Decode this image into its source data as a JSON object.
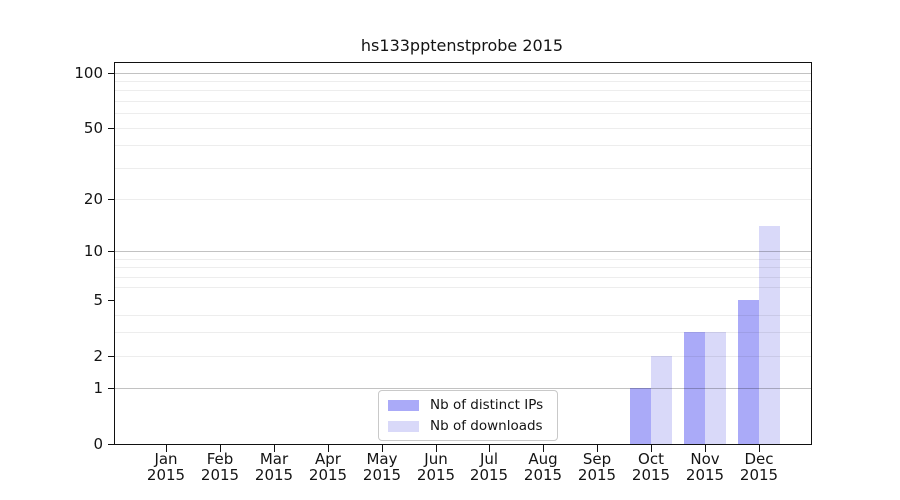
{
  "chart_data": {
    "type": "bar",
    "title": "hs133pptenstprobe 2015",
    "x_axis": {
      "categories": [
        "Jan",
        "Feb",
        "Mar",
        "Apr",
        "May",
        "Jun",
        "Jul",
        "Aug",
        "Sep",
        "Oct",
        "Nov",
        "Dec"
      ],
      "year": "2015"
    },
    "y_axis": {
      "scale": "log1p",
      "tick_values": [
        0,
        1,
        2,
        5,
        10,
        20,
        50,
        100
      ],
      "minor_gridlines": [
        2,
        3,
        4,
        6,
        7,
        8,
        9,
        20,
        30,
        40,
        50,
        60,
        70,
        80,
        90
      ],
      "major_gridlines": [
        1,
        10,
        100
      ],
      "ylim": [
        0,
        113
      ],
      "grid": true
    },
    "series": [
      {
        "name": "Nb of distinct IPs",
        "color": "#aaaaf8",
        "values": [
          0,
          0,
          0,
          0,
          0,
          0,
          0,
          0,
          0,
          1,
          3,
          5
        ]
      },
      {
        "name": "Nb of downloads",
        "color": "#d9d9f9",
        "values": [
          0,
          0,
          0,
          0,
          0,
          0,
          0,
          0,
          0,
          2,
          3,
          14
        ]
      }
    ],
    "legend": {
      "position": "bottom-center"
    }
  }
}
